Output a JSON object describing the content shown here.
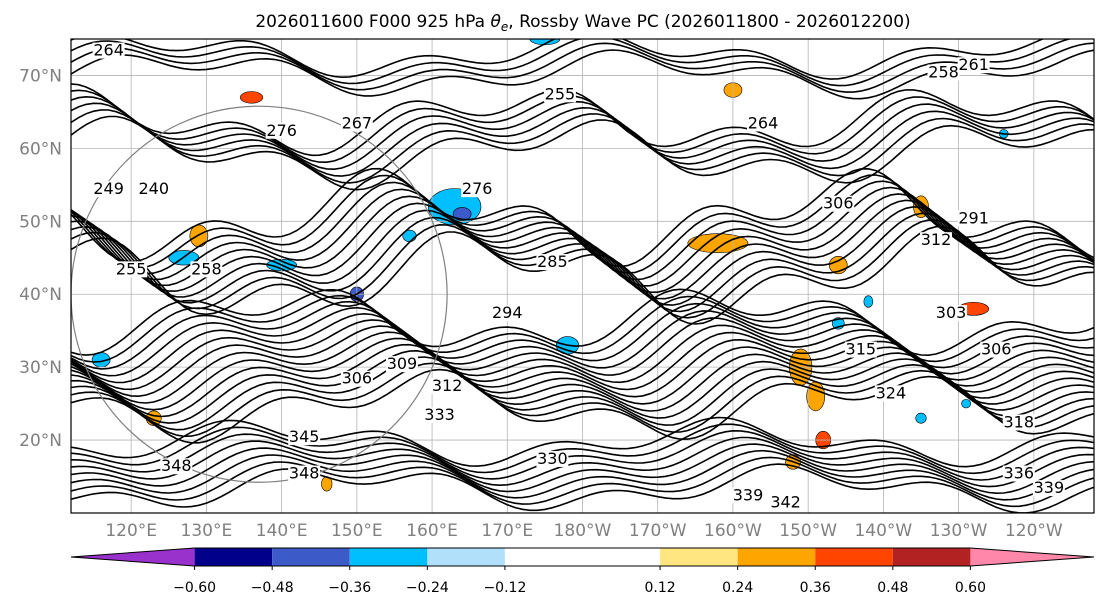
{
  "chart_data": {
    "type": "contour",
    "title_parts": {
      "prefix": "2026011600 F000 925 hPa ",
      "theta_symbol": "θ",
      "theta_sub": "e",
      "suffix": ", Rossby Wave PC (2026011800 - 2026012200)"
    },
    "map": {
      "lon_range": [
        112,
        248
      ],
      "lat_range": [
        10,
        75
      ],
      "grid": true,
      "circle_center": [
        137,
        40
      ],
      "circle_radius_deg": 25
    },
    "x_tick_lons": [
      120,
      130,
      140,
      150,
      160,
      170,
      180,
      190,
      200,
      210,
      220,
      230,
      240
    ],
    "x_tick_labels": [
      "120°E",
      "130°E",
      "140°E",
      "150°E",
      "160°E",
      "170°E",
      "180°W",
      "170°W",
      "160°W",
      "150°W",
      "140°W",
      "130°W",
      "120°W"
    ],
    "y_tick_lats": [
      20,
      30,
      40,
      50,
      60,
      70
    ],
    "y_tick_labels": [
      "20°N",
      "30°N",
      "40°N",
      "50°N",
      "60°N",
      "70°N"
    ],
    "colorbar": {
      "boundaries": [
        -0.72,
        -0.6,
        -0.48,
        -0.36,
        -0.24,
        -0.12,
        0.12,
        0.24,
        0.36,
        0.48,
        0.6,
        0.72
      ],
      "colors": [
        "#9932cc",
        "#00008b",
        "#3c5ac8",
        "#00bfff",
        "#b0e0fa",
        "#ffffff",
        "#ffe680",
        "#ffa500",
        "#ff4500",
        "#b22222",
        "#ff88aa"
      ],
      "extend": "both",
      "tick_values": [
        -0.6,
        -0.48,
        -0.36,
        -0.24,
        -0.12,
        0.12,
        0.24,
        0.36,
        0.48,
        0.6
      ],
      "tick_labels": [
        "−0.60",
        "−0.48",
        "−0.36",
        "−0.24",
        "−0.12",
        "0.12",
        "0.24",
        "0.36",
        "0.48",
        "0.60"
      ]
    },
    "contour_labels": [
      {
        "text": "264",
        "lon": 117,
        "lat": 73
      },
      {
        "text": "255",
        "lon": 177,
        "lat": 67
      },
      {
        "text": "261",
        "lon": 232,
        "lat": 71
      },
      {
        "text": "258",
        "lon": 228,
        "lat": 70
      },
      {
        "text": "264",
        "lon": 204,
        "lat": 63
      },
      {
        "text": "267",
        "lon": 150,
        "lat": 63
      },
      {
        "text": "276",
        "lon": 140,
        "lat": 62
      },
      {
        "text": "249",
        "lon": 117,
        "lat": 54
      },
      {
        "text": "240",
        "lon": 123,
        "lat": 54
      },
      {
        "text": "276",
        "lon": 166,
        "lat": 54
      },
      {
        "text": "306",
        "lon": 214,
        "lat": 52
      },
      {
        "text": "291",
        "lon": 232,
        "lat": 50
      },
      {
        "text": "312",
        "lon": 227,
        "lat": 47
      },
      {
        "text": "255",
        "lon": 120,
        "lat": 43
      },
      {
        "text": "258",
        "lon": 130,
        "lat": 43
      },
      {
        "text": "285",
        "lon": 176,
        "lat": 44
      },
      {
        "text": "294",
        "lon": 170,
        "lat": 37
      },
      {
        "text": "303",
        "lon": 229,
        "lat": 37
      },
      {
        "text": "306",
        "lon": 235,
        "lat": 32
      },
      {
        "text": "306",
        "lon": 150,
        "lat": 28
      },
      {
        "text": "309",
        "lon": 156,
        "lat": 30
      },
      {
        "text": "312",
        "lon": 162,
        "lat": 27
      },
      {
        "text": "315",
        "lon": 217,
        "lat": 32
      },
      {
        "text": "324",
        "lon": 221,
        "lat": 26
      },
      {
        "text": "318",
        "lon": 238,
        "lat": 22
      },
      {
        "text": "333",
        "lon": 161,
        "lat": 23
      },
      {
        "text": "345",
        "lon": 143,
        "lat": 20
      },
      {
        "text": "330",
        "lon": 176,
        "lat": 17
      },
      {
        "text": "336",
        "lon": 238,
        "lat": 15
      },
      {
        "text": "339",
        "lon": 242,
        "lat": 13
      },
      {
        "text": "339",
        "lon": 202,
        "lat": 12
      },
      {
        "text": "342",
        "lon": 207,
        "lat": 11
      },
      {
        "text": "348",
        "lon": 126,
        "lat": 16
      },
      {
        "text": "348",
        "lon": 143,
        "lat": 15
      }
    ],
    "shading": [
      {
        "lon": 163,
        "lat": 52,
        "rx": 3.5,
        "ry": 2.5,
        "color": "#00bfff"
      },
      {
        "lon": 164,
        "lat": 51,
        "rx": 1.2,
        "ry": 0.9,
        "color": "#3c5ac8"
      },
      {
        "lon": 198,
        "lat": 47,
        "rx": 2.2,
        "ry": 0.9,
        "color": "#ff4500"
      },
      {
        "lon": 198,
        "lat": 47,
        "rx": 4.0,
        "ry": 1.3,
        "color": "#ffa500"
      },
      {
        "lon": 232,
        "lat": 38,
        "rx": 2.0,
        "ry": 0.9,
        "color": "#ff4500"
      },
      {
        "lon": 225,
        "lat": 52,
        "rx": 1.0,
        "ry": 1.5,
        "color": "#ffa500"
      },
      {
        "lon": 214,
        "lat": 44,
        "rx": 1.2,
        "ry": 1.2,
        "color": "#ffa500"
      },
      {
        "lon": 209,
        "lat": 30,
        "rx": 1.5,
        "ry": 2.5,
        "color": "#ffa500"
      },
      {
        "lon": 211,
        "lat": 26,
        "rx": 1.2,
        "ry": 2.0,
        "color": "#ffa500"
      },
      {
        "lon": 212,
        "lat": 20,
        "rx": 1.0,
        "ry": 1.2,
        "color": "#ff4500"
      },
      {
        "lon": 208,
        "lat": 17,
        "rx": 1.0,
        "ry": 1.0,
        "color": "#ffa500"
      },
      {
        "lon": 129,
        "lat": 48,
        "rx": 1.2,
        "ry": 1.5,
        "color": "#ffa500"
      },
      {
        "lon": 136,
        "lat": 67,
        "rx": 1.5,
        "ry": 0.8,
        "color": "#ff4500"
      },
      {
        "lon": 200,
        "lat": 68,
        "rx": 1.2,
        "ry": 1.0,
        "color": "#ffa500"
      },
      {
        "lon": 175,
        "lat": 75,
        "rx": 2.0,
        "ry": 0.8,
        "color": "#00bfff"
      },
      {
        "lon": 178,
        "lat": 33,
        "rx": 1.5,
        "ry": 1.2,
        "color": "#00bfff"
      },
      {
        "lon": 116,
        "lat": 31,
        "rx": 1.2,
        "ry": 1.0,
        "color": "#00bfff"
      },
      {
        "lon": 127,
        "lat": 45,
        "rx": 2.0,
        "ry": 1.0,
        "color": "#00bfff"
      },
      {
        "lon": 140,
        "lat": 44,
        "rx": 2.0,
        "ry": 0.8,
        "color": "#00bfff"
      },
      {
        "lon": 150,
        "lat": 40,
        "rx": 0.9,
        "ry": 1.0,
        "color": "#3c5ac8"
      },
      {
        "lon": 157,
        "lat": 48,
        "rx": 0.9,
        "ry": 0.8,
        "color": "#00bfff"
      },
      {
        "lon": 123,
        "lat": 23,
        "rx": 1.0,
        "ry": 1.0,
        "color": "#ffa500"
      },
      {
        "lon": 146,
        "lat": 14,
        "rx": 0.7,
        "ry": 1.0,
        "color": "#ffa500"
      },
      {
        "lon": 214,
        "lat": 36,
        "rx": 0.8,
        "ry": 0.8,
        "color": "#00bfff"
      },
      {
        "lon": 218,
        "lat": 39,
        "rx": 0.6,
        "ry": 0.8,
        "color": "#00bfff"
      },
      {
        "lon": 231,
        "lat": 25,
        "rx": 0.6,
        "ry": 0.6,
        "color": "#00bfff"
      },
      {
        "lon": 236,
        "lat": 62,
        "rx": 0.6,
        "ry": 0.6,
        "color": "#00bfff"
      },
      {
        "lon": 225,
        "lat": 23,
        "rx": 0.7,
        "ry": 0.7,
        "color": "#00bfff"
      }
    ],
    "contour_bands": [
      {
        "lat0": 72,
        "amp": 2.0,
        "n": 4
      },
      {
        "lat0": 62,
        "amp": 3.0,
        "n": 6
      },
      {
        "lat0": 47,
        "amp": 4.0,
        "n": 10
      },
      {
        "lat0": 31,
        "amp": 3.0,
        "n": 14
      },
      {
        "lat0": 17,
        "amp": 2.0,
        "n": 8
      }
    ]
  }
}
